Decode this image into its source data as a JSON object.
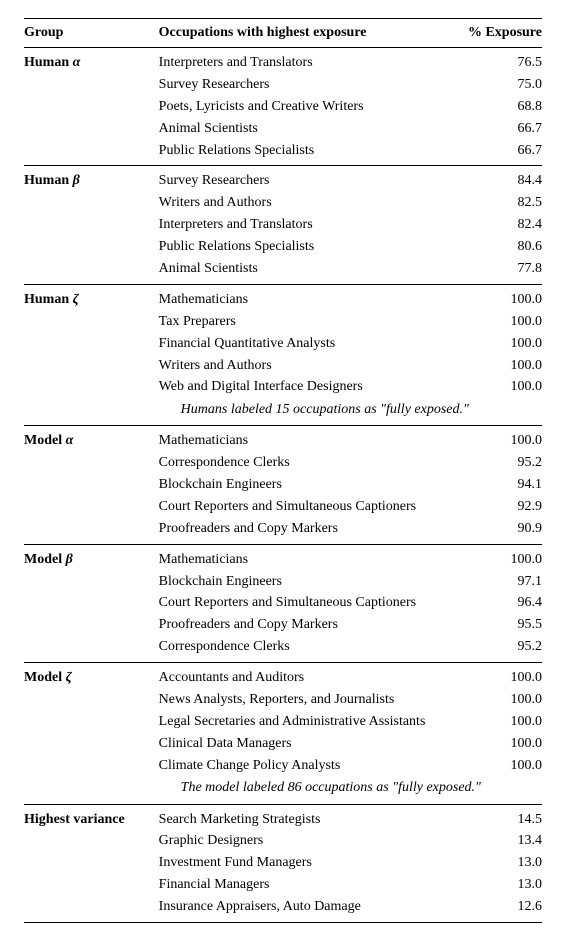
{
  "headers": {
    "group": "Group",
    "occupations": "Occupations with highest exposure",
    "exposure": "% Exposure"
  },
  "greek": {
    "alpha": "α",
    "beta": "β",
    "zeta": "ζ"
  },
  "groups": [
    {
      "name_prefix": "Human ",
      "greek_key": "alpha",
      "rows": [
        {
          "occ": "Interpreters and Translators",
          "exp": "76.5"
        },
        {
          "occ": "Survey Researchers",
          "exp": "75.0"
        },
        {
          "occ": "Poets, Lyricists and Creative Writers",
          "exp": "68.8"
        },
        {
          "occ": "Animal Scientists",
          "exp": "66.7"
        },
        {
          "occ": "Public Relations Specialists",
          "exp": "66.7"
        }
      ],
      "note": null
    },
    {
      "name_prefix": "Human ",
      "greek_key": "beta",
      "rows": [
        {
          "occ": "Survey Researchers",
          "exp": "84.4"
        },
        {
          "occ": "Writers and Authors",
          "exp": "82.5"
        },
        {
          "occ": "Interpreters and Translators",
          "exp": "82.4"
        },
        {
          "occ": "Public Relations Specialists",
          "exp": "80.6"
        },
        {
          "occ": "Animal Scientists",
          "exp": "77.8"
        }
      ],
      "note": null
    },
    {
      "name_prefix": "Human ",
      "greek_key": "zeta",
      "rows": [
        {
          "occ": "Mathematicians",
          "exp": "100.0"
        },
        {
          "occ": "Tax Preparers",
          "exp": "100.0"
        },
        {
          "occ": "Financial Quantitative Analysts",
          "exp": "100.0"
        },
        {
          "occ": "Writers and Authors",
          "exp": "100.0"
        },
        {
          "occ": "Web and Digital Interface Designers",
          "exp": "100.0"
        }
      ],
      "note": "Humans labeled 15 occupations as \"fully exposed.\""
    },
    {
      "name_prefix": "Model ",
      "greek_key": "alpha",
      "rows": [
        {
          "occ": "Mathematicians",
          "exp": "100.0"
        },
        {
          "occ": "Correspondence Clerks",
          "exp": "95.2"
        },
        {
          "occ": "Blockchain Engineers",
          "exp": "94.1"
        },
        {
          "occ": "Court Reporters and Simultaneous Captioners",
          "exp": "92.9"
        },
        {
          "occ": "Proofreaders and Copy Markers",
          "exp": "90.9"
        }
      ],
      "note": null
    },
    {
      "name_prefix": "Model ",
      "greek_key": "beta",
      "rows": [
        {
          "occ": "Mathematicians",
          "exp": "100.0"
        },
        {
          "occ": "Blockchain Engineers",
          "exp": "97.1"
        },
        {
          "occ": "Court Reporters and Simultaneous Captioners",
          "exp": "96.4"
        },
        {
          "occ": "Proofreaders and Copy Markers",
          "exp": "95.5"
        },
        {
          "occ": "Correspondence Clerks",
          "exp": "95.2"
        }
      ],
      "note": null
    },
    {
      "name_prefix": "Model ",
      "greek_key": "zeta",
      "rows": [
        {
          "occ": "Accountants and Auditors",
          "exp": "100.0"
        },
        {
          "occ": "News Analysts, Reporters, and Journalists",
          "exp": "100.0"
        },
        {
          "occ": "Legal Secretaries and Administrative Assistants",
          "exp": "100.0"
        },
        {
          "occ": "Clinical Data Managers",
          "exp": "100.0"
        },
        {
          "occ": "Climate Change Policy Analysts",
          "exp": "100.0"
        }
      ],
      "note": "The model labeled 86 occupations as \"fully exposed.\""
    },
    {
      "name_prefix": "Highest variance",
      "greek_key": null,
      "rows": [
        {
          "occ": "Search Marketing Strategists",
          "exp": "14.5"
        },
        {
          "occ": "Graphic Designers",
          "exp": "13.4"
        },
        {
          "occ": "Investment Fund Managers",
          "exp": "13.0"
        },
        {
          "occ": "Financial Managers",
          "exp": "13.0"
        },
        {
          "occ": "Insurance Appraisers, Auto Damage",
          "exp": "12.6"
        }
      ],
      "note": null
    }
  ]
}
